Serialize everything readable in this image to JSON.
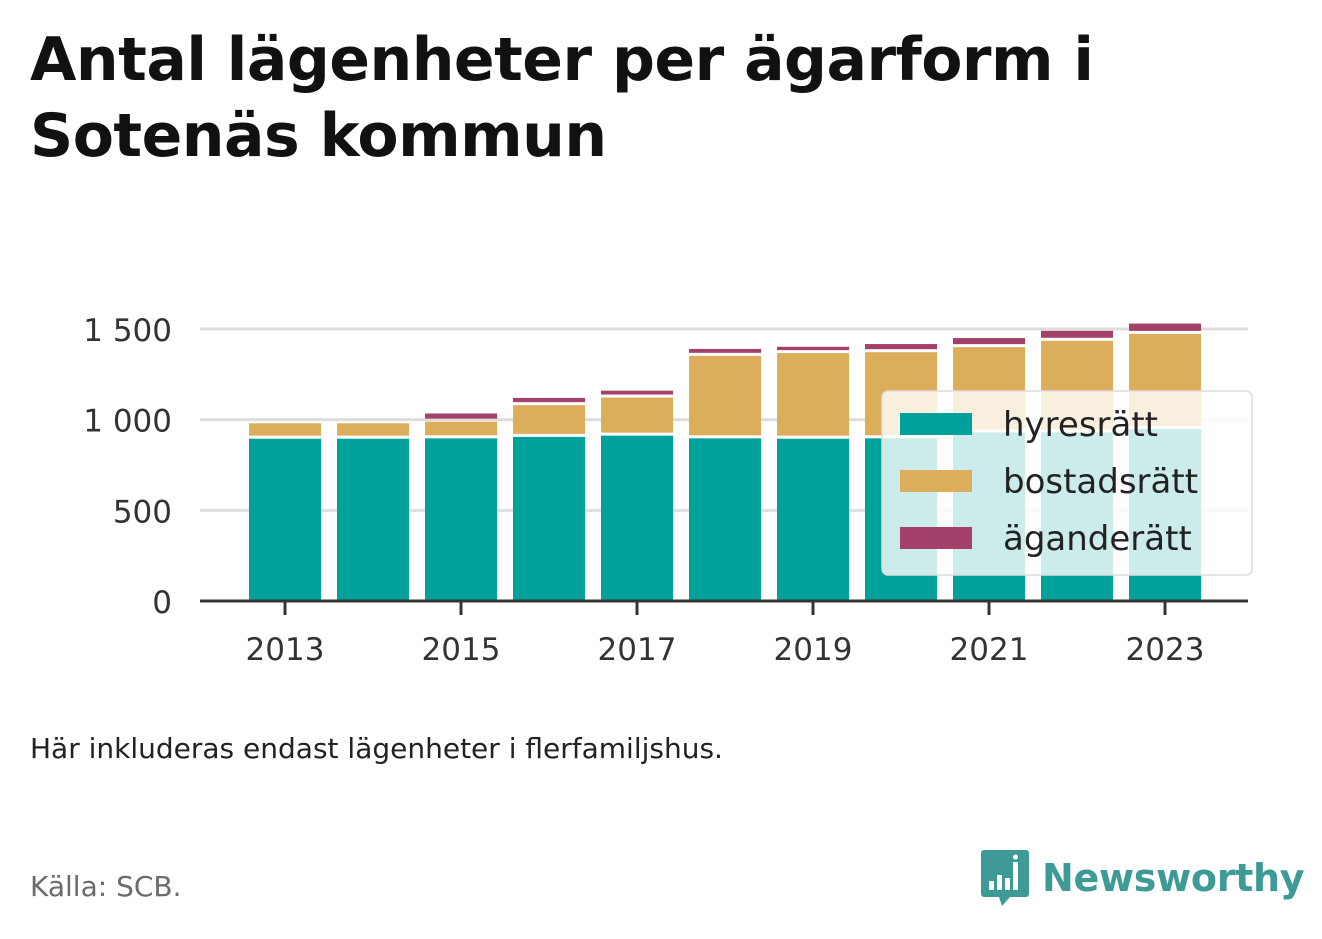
{
  "title_lines": [
    "Antal lägenheter per ägarform i",
    "Sotenäs kommun"
  ],
  "note": "Här inkluderas endast lägenheter i flerfamiljshus.",
  "source": "Källa: SCB.",
  "brand": {
    "name": "Newsworthy",
    "icon": "bar-chart-speech-bubble-icon"
  },
  "colors": {
    "hyresratt": "#00a19a",
    "bostadsratt": "#dcad5b",
    "aganderatt": "#a4416a",
    "grid": "#dddddd",
    "axis": "#333333",
    "brand": "#3d9a96"
  },
  "chart_data": {
    "type": "bar",
    "stacked": true,
    "categories": [
      "2013",
      "2014",
      "2015",
      "2016",
      "2017",
      "2018",
      "2019",
      "2020",
      "2021",
      "2022",
      "2023"
    ],
    "x_tick_labels": [
      "2013",
      "2015",
      "2017",
      "2019",
      "2021",
      "2023"
    ],
    "y_ticks": [
      0,
      500,
      1000,
      1500
    ],
    "y_tick_labels": [
      "0",
      "500",
      "1 000",
      "1 500"
    ],
    "ylim": [
      0,
      1500
    ],
    "grid": true,
    "legend_position": "bottom-right",
    "series": [
      {
        "name": "hyresrätt",
        "color": "#00a19a",
        "values": [
          895,
          895,
          897,
          905,
          912,
          897,
          895,
          897,
          930,
          930,
          948
        ]
      },
      {
        "name": "bostadsrätt",
        "color": "#dcad5b",
        "values": [
          85,
          85,
          92,
          175,
          210,
          455,
          472,
          475,
          470,
          505,
          525
        ]
      },
      {
        "name": "äganderätt",
        "color": "#a4416a",
        "values": [
          0,
          0,
          45,
          40,
          38,
          38,
          35,
          45,
          50,
          55,
          57
        ]
      }
    ]
  }
}
